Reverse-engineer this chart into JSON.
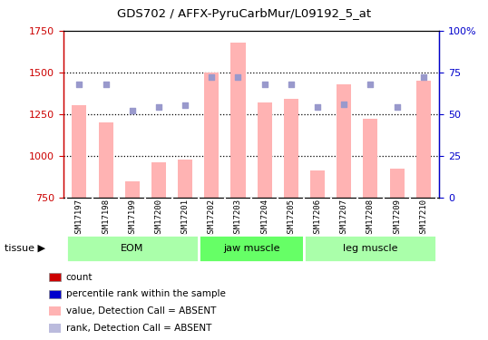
{
  "title": "GDS702 / AFFX-PyruCarbMur/L09192_5_at",
  "samples": [
    "GSM17197",
    "GSM17198",
    "GSM17199",
    "GSM17200",
    "GSM17201",
    "GSM17202",
    "GSM17203",
    "GSM17204",
    "GSM17205",
    "GSM17206",
    "GSM17207",
    "GSM17208",
    "GSM17209",
    "GSM17210"
  ],
  "bar_values": [
    1300,
    1200,
    845,
    960,
    975,
    1500,
    1680,
    1320,
    1340,
    910,
    1430,
    1220,
    920,
    1450
  ],
  "dot_values": [
    68,
    68,
    52,
    54,
    55,
    72,
    72,
    68,
    68,
    54,
    56,
    68,
    54,
    72
  ],
  "bar_color": "#FFB3B3",
  "dot_color": "#9999CC",
  "ylim_left": [
    750,
    1750
  ],
  "ylim_right": [
    0,
    100
  ],
  "yticks_left": [
    750,
    1000,
    1250,
    1500,
    1750
  ],
  "ytick_labels_left": [
    "750",
    "1000",
    "1250",
    "1500",
    "1750"
  ],
  "yticks_right": [
    0,
    25,
    50,
    75,
    100
  ],
  "ytick_labels_right": [
    "0",
    "25",
    "50",
    "75",
    "100%"
  ],
  "gridlines": [
    1000,
    1250,
    1500
  ],
  "groups": [
    {
      "label": "EOM",
      "start": 0,
      "end": 4,
      "color": "#AAFFAA"
    },
    {
      "label": "jaw muscle",
      "start": 5,
      "end": 8,
      "color": "#66FF66"
    },
    {
      "label": "leg muscle",
      "start": 9,
      "end": 13,
      "color": "#AAFFAA"
    }
  ],
  "tissue_label": "tissue ▶",
  "legend_items": [
    {
      "label": "count",
      "color": "#CC0000"
    },
    {
      "label": "percentile rank within the sample",
      "color": "#0000CC"
    },
    {
      "label": "value, Detection Call = ABSENT",
      "color": "#FFB3B3"
    },
    {
      "label": "rank, Detection Call = ABSENT",
      "color": "#BBBBDD"
    }
  ],
  "left_axis_color": "#CC0000",
  "right_axis_color": "#0000CC",
  "tick_bg_color": "#CCCCCC",
  "plot_bg_color": "#FFFFFF",
  "fig_width": 5.38,
  "fig_height": 3.75,
  "dpi": 100
}
